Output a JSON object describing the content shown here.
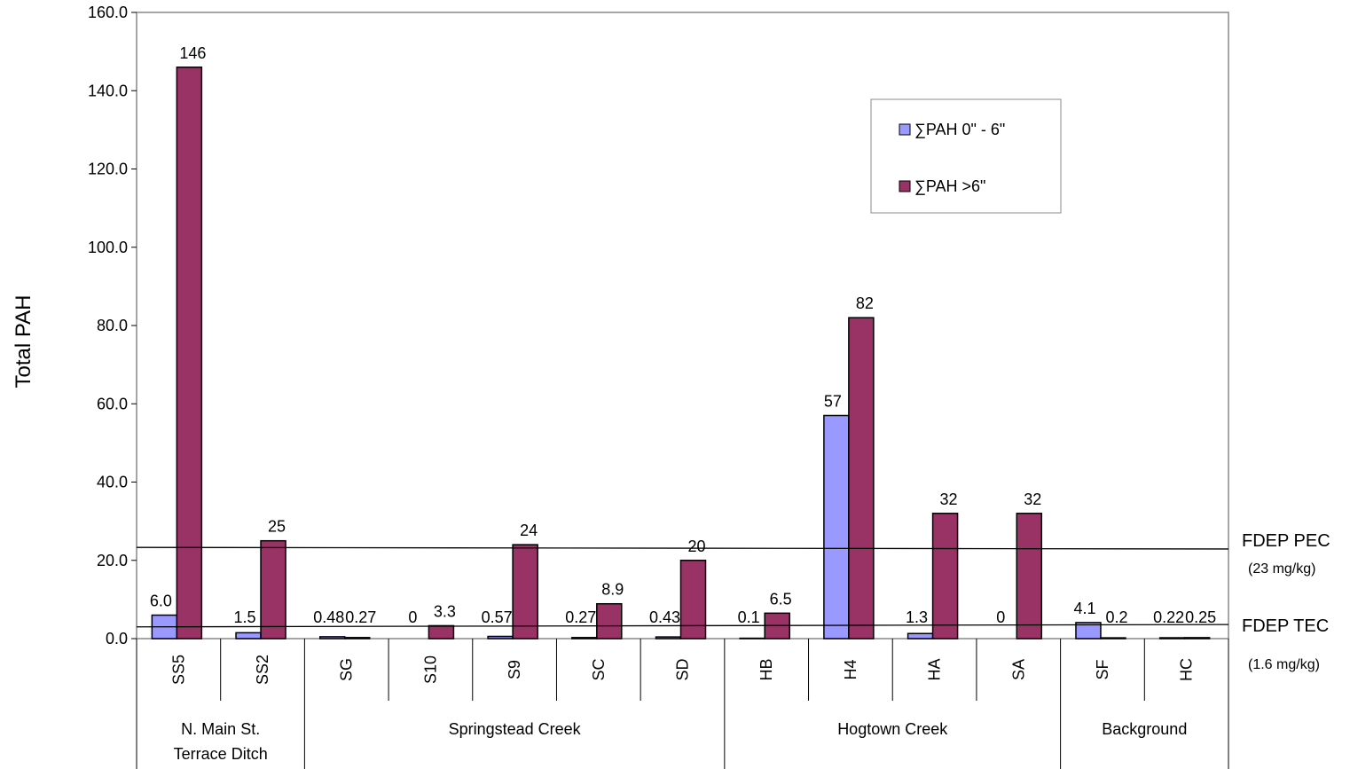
{
  "chart_data": {
    "type": "bar",
    "ylabel": "Total PAH",
    "ylim": [
      0,
      160
    ],
    "ytick_step": 20,
    "ytick_labels": [
      "0.0",
      "20.0",
      "40.0",
      "60.0",
      "80.0",
      "100.0",
      "120.0",
      "140.0",
      "160.0"
    ],
    "grid": false,
    "legend_position": "top-right",
    "categories": [
      "SS5",
      "SS2",
      "SG",
      "S10",
      "S9",
      "SC",
      "SD",
      "HB",
      "H4",
      "HA",
      "SA",
      "SF",
      "HC"
    ],
    "groups": [
      {
        "label": "N. Main St. Terrace Ditch",
        "categories": [
          "SS5",
          "SS2"
        ]
      },
      {
        "label": "Springstead Creek",
        "categories": [
          "SG",
          "S10",
          "S9",
          "SC",
          "SD"
        ]
      },
      {
        "label": "Hogtown Creek",
        "categories": [
          "HB",
          "H4",
          "HA",
          "SA"
        ]
      },
      {
        "label": "Background",
        "categories": [
          "SF",
          "HC"
        ]
      }
    ],
    "series": [
      {
        "name": "∑PAH 0\" - 6\"",
        "color": "#9999ff",
        "values": [
          6.0,
          1.5,
          0.48,
          0,
          0.57,
          0.27,
          0.43,
          0.1,
          57,
          1.3,
          0,
          4.1,
          0.22
        ],
        "labels": [
          "6.0",
          "1.5",
          "0.48",
          "0",
          "0.57",
          "0.27",
          "0.43",
          "0.1",
          "57",
          "1.3",
          "0",
          "4.1",
          "0.22"
        ]
      },
      {
        "name": "∑PAH >6\"",
        "color": "#993366",
        "values": [
          146,
          25,
          0.27,
          3.3,
          24,
          8.9,
          20,
          6.5,
          82,
          32,
          32,
          0.2,
          0.25
        ],
        "labels": [
          "146",
          "25",
          "0.27",
          "3.3",
          "24",
          "8.9",
          "20",
          "6.5",
          "82",
          "32",
          "32",
          "0.2",
          "0.25"
        ]
      }
    ],
    "reference_lines": [
      {
        "name": "FDEP PEC",
        "note": "(23 mg/kg)",
        "y_left": 23.3,
        "y_right": 22.9
      },
      {
        "name": "FDEP TEC",
        "note": "(1.6 mg/kg)",
        "y_left": 3.0,
        "y_right": 3.6
      }
    ]
  }
}
